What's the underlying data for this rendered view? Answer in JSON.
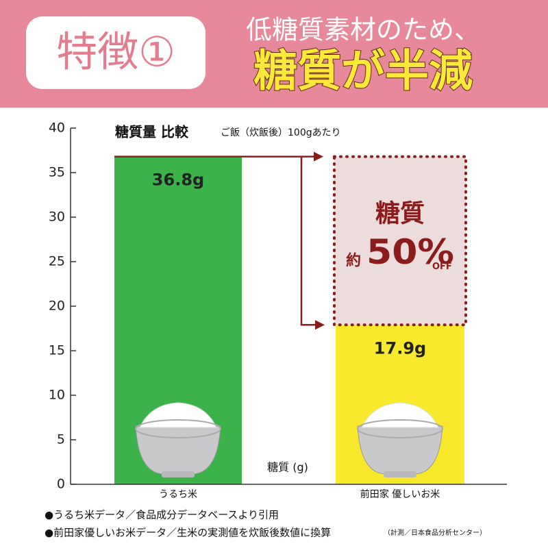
{
  "chart_data": {
    "type": "bar",
    "header_badge": "特徴①",
    "header_line1": "低糖質素材のため、",
    "header_line2": "糖質が半減",
    "title": "糖質量 比較",
    "subtitle": "ご飯（炊飯後）100gあたり",
    "y_label": "糖質 (g)",
    "categories": [
      "うるち米",
      "前田家 優しいお米"
    ],
    "values": [
      36.8,
      17.9
    ],
    "value_labels": [
      "36.8g",
      "17.9g"
    ],
    "colors": [
      "#3cb34a",
      "#f9e92c"
    ],
    "ylim": [
      0,
      40
    ],
    "yticks": [
      0,
      5,
      10,
      15,
      20,
      25,
      30,
      35,
      40
    ],
    "annotation": {
      "title": "糖質",
      "prefix": "約",
      "main": "50%",
      "suffix": "OFF"
    },
    "footnotes": [
      "●うるち米データ／食品成分データベースより引用",
      "●前田家優しいお米データ／生米の実測値を炊飯後数値に換算"
    ],
    "footnote_small": "（計測／日本食品分析センター）"
  }
}
